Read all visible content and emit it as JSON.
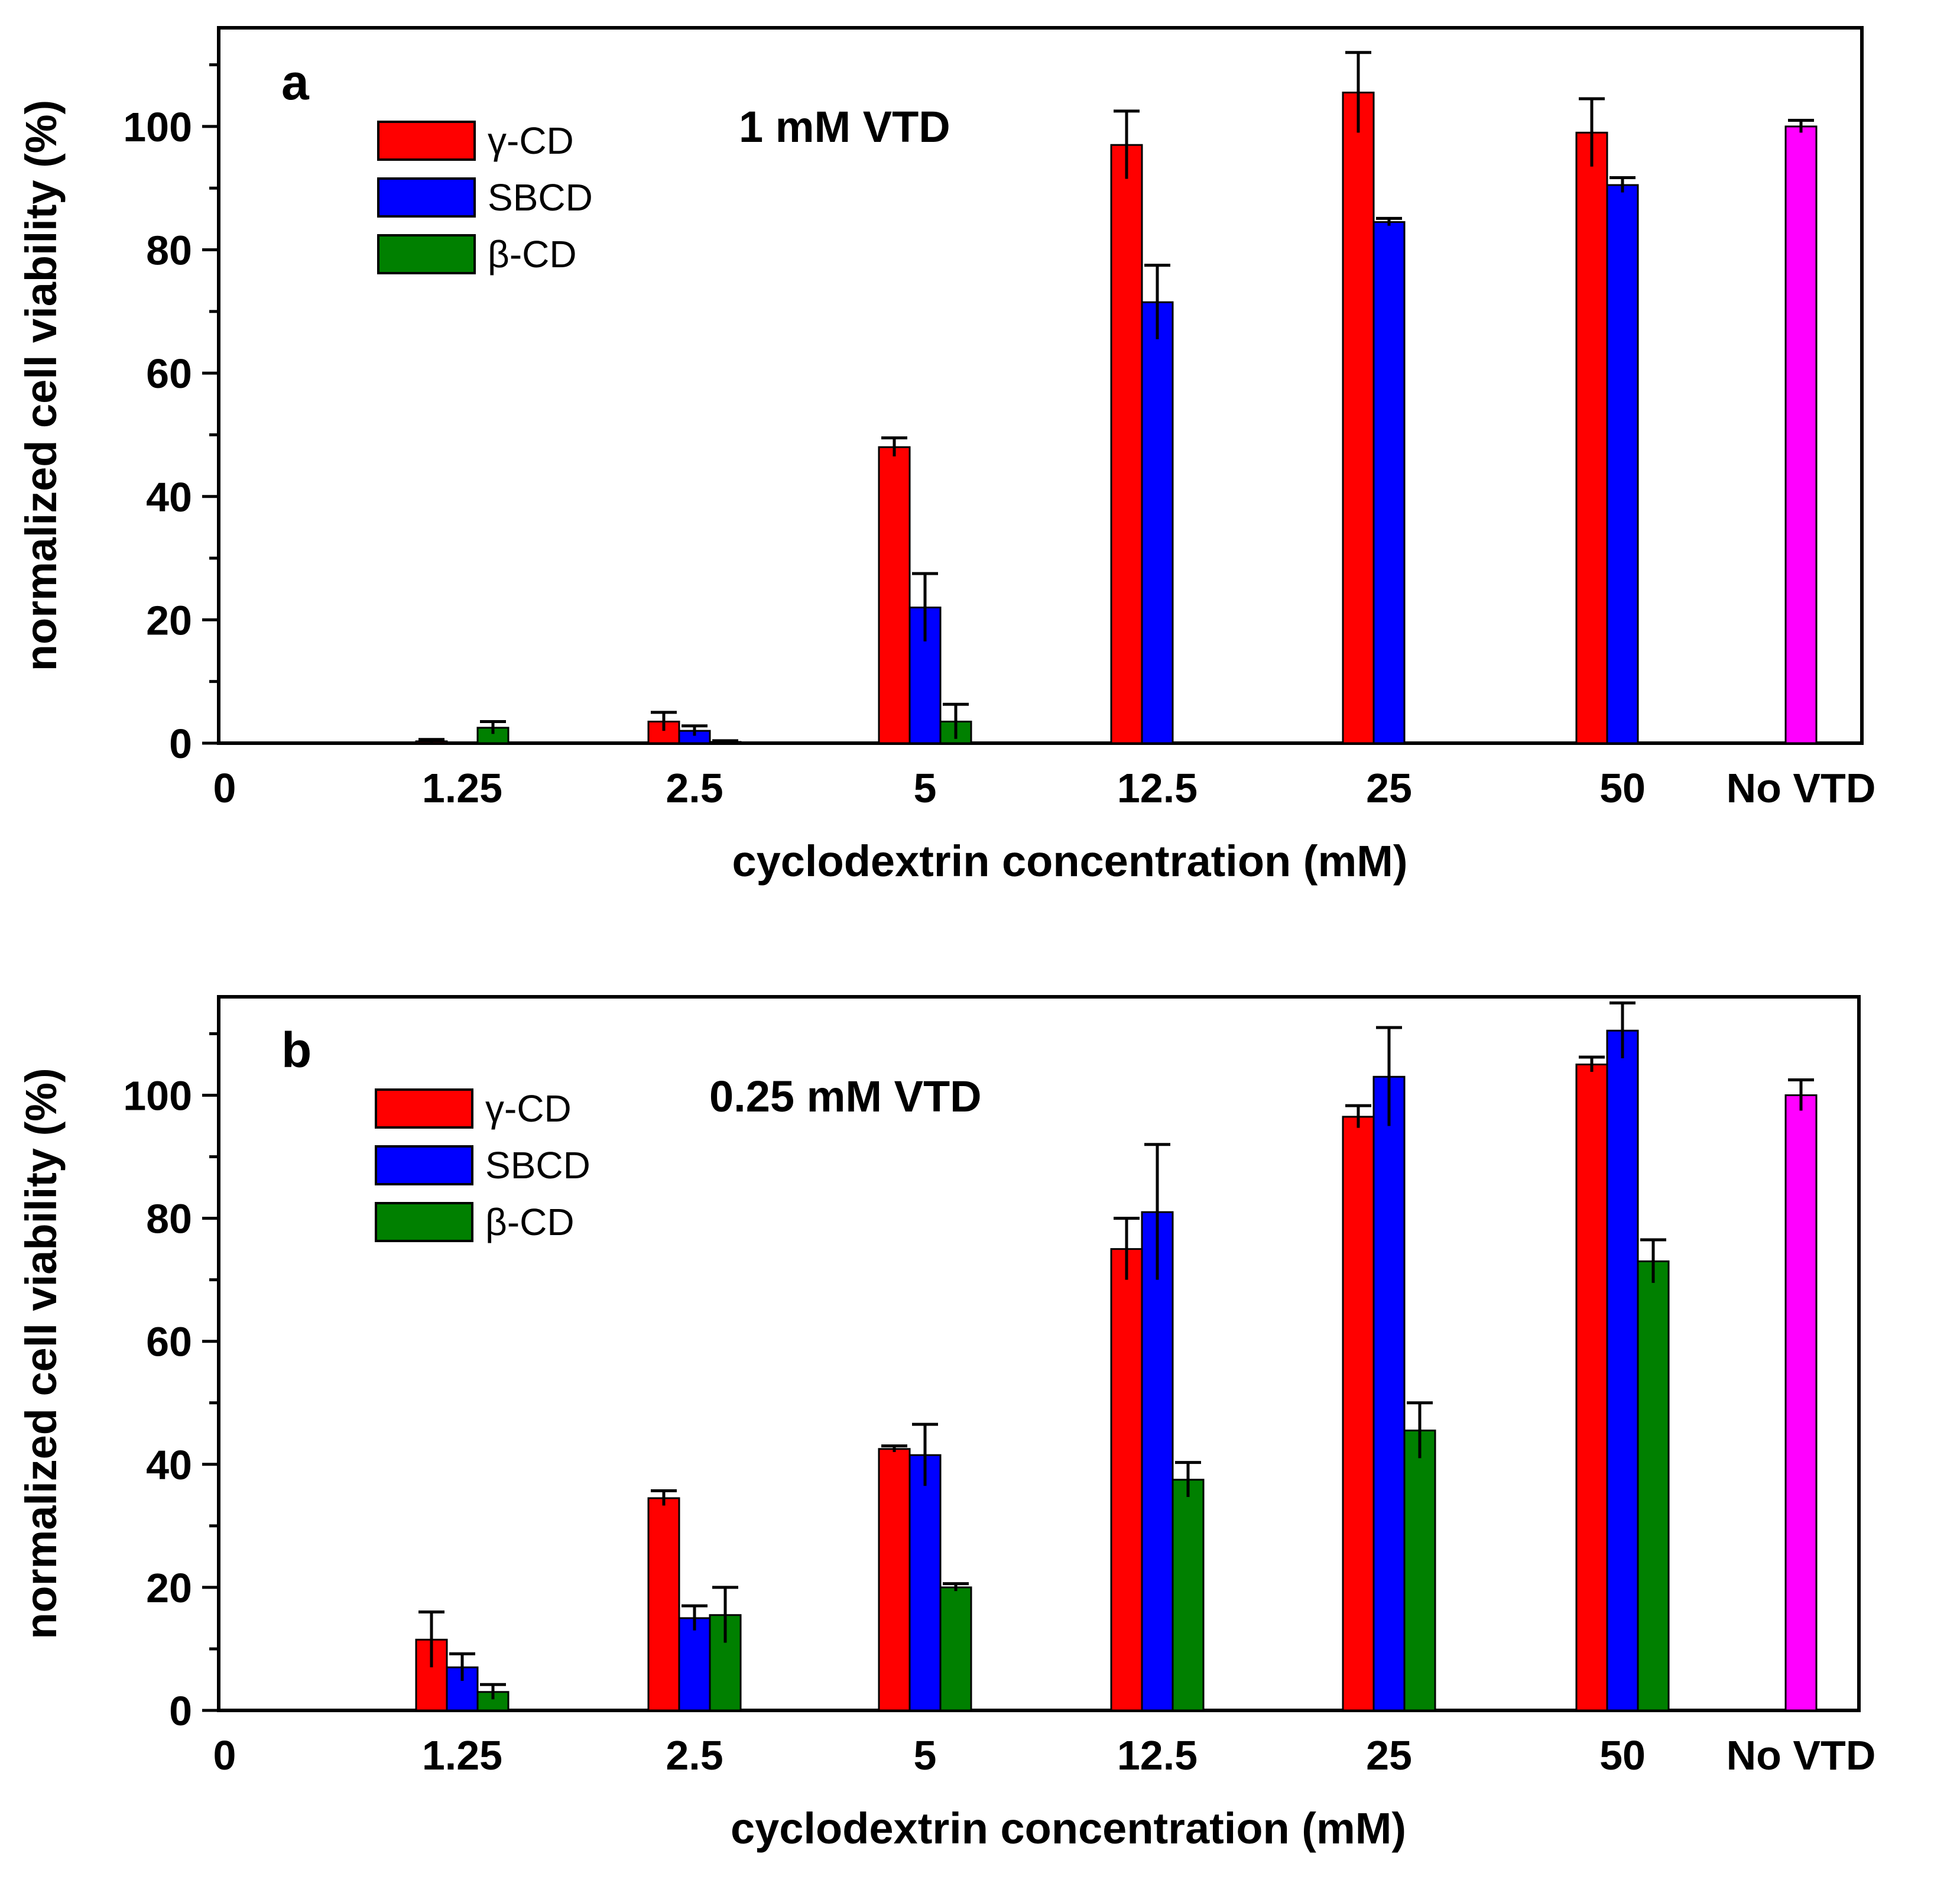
{
  "chart_data": [
    {
      "type": "bar",
      "panel_label": "a",
      "title": "1 mM VTD",
      "xlabel": "cyclodextrin concentration (mM)",
      "ylabel": "normalized cell viability (%)",
      "xtick_zero": "0",
      "categories": [
        "1.25",
        "2.5",
        "5",
        "12.5",
        "25",
        "50",
        "No VTD"
      ],
      "ylim": [
        0,
        116
      ],
      "yticks": [
        0,
        20,
        40,
        60,
        80,
        100
      ],
      "ytick_labels": [
        "0",
        "20",
        "40",
        "60",
        "80",
        "100"
      ],
      "grid": false,
      "legend_position": "top-left",
      "series": [
        {
          "name": "γ-CD",
          "color": "#ff0000",
          "values": [
            0.3,
            3.5,
            48,
            97,
            105.5,
            99,
            null
          ],
          "errors": [
            0.3,
            1.5,
            1.5,
            5.5,
            6.5,
            5.5,
            null
          ]
        },
        {
          "name": "SBCD",
          "color": "#0000ff",
          "values": [
            0,
            2,
            22,
            71.5,
            84.5,
            90.5,
            null
          ],
          "errors": [
            0,
            0.8,
            5.5,
            6,
            0.6,
            1.2,
            null
          ]
        },
        {
          "name": "β-CD",
          "color": "#008000",
          "values": [
            2.5,
            0.2,
            3.5,
            0,
            0,
            0,
            null
          ],
          "errors": [
            1,
            0.2,
            2.8,
            0,
            0,
            0,
            null
          ]
        },
        {
          "name": "No VTD",
          "color": "#ff00ff",
          "values": [
            null,
            null,
            null,
            null,
            null,
            null,
            100
          ],
          "errors": [
            null,
            null,
            null,
            null,
            null,
            null,
            1
          ],
          "show_in_legend": false
        }
      ]
    },
    {
      "type": "bar",
      "panel_label": "b",
      "title": "0.25 mM VTD",
      "xlabel": "cyclodextrin concentration (mM)",
      "ylabel": "normalized cell viability (%)",
      "xtick_zero": "0",
      "categories": [
        "1.25",
        "2.5",
        "5",
        "12.5",
        "25",
        "50",
        "No VTD"
      ],
      "ylim": [
        0,
        116
      ],
      "yticks": [
        0,
        20,
        40,
        60,
        80,
        100
      ],
      "ytick_labels": [
        "0",
        "20",
        "40",
        "60",
        "80",
        "100"
      ],
      "grid": false,
      "legend_position": "top-left",
      "series": [
        {
          "name": "γ-CD",
          "color": "#ff0000",
          "values": [
            11.5,
            34.5,
            42.5,
            75,
            96.5,
            105,
            null
          ],
          "errors": [
            4.5,
            1.2,
            0.5,
            5,
            1.8,
            1.2,
            null
          ]
        },
        {
          "name": "SBCD",
          "color": "#0000ff",
          "values": [
            7,
            15,
            41.5,
            81,
            103,
            110.5,
            null
          ],
          "errors": [
            2.2,
            2,
            5,
            11,
            8,
            4.5,
            null
          ]
        },
        {
          "name": "β-CD",
          "color": "#008000",
          "values": [
            3,
            15.5,
            20,
            37.5,
            45.5,
            73,
            null
          ],
          "errors": [
            1.2,
            4.5,
            0.6,
            2.8,
            4.5,
            3.5,
            null
          ]
        },
        {
          "name": "No VTD",
          "color": "#ff00ff",
          "values": [
            null,
            null,
            null,
            null,
            null,
            null,
            100
          ],
          "errors": [
            null,
            null,
            null,
            null,
            null,
            null,
            2.5
          ],
          "show_in_legend": false
        }
      ]
    }
  ]
}
